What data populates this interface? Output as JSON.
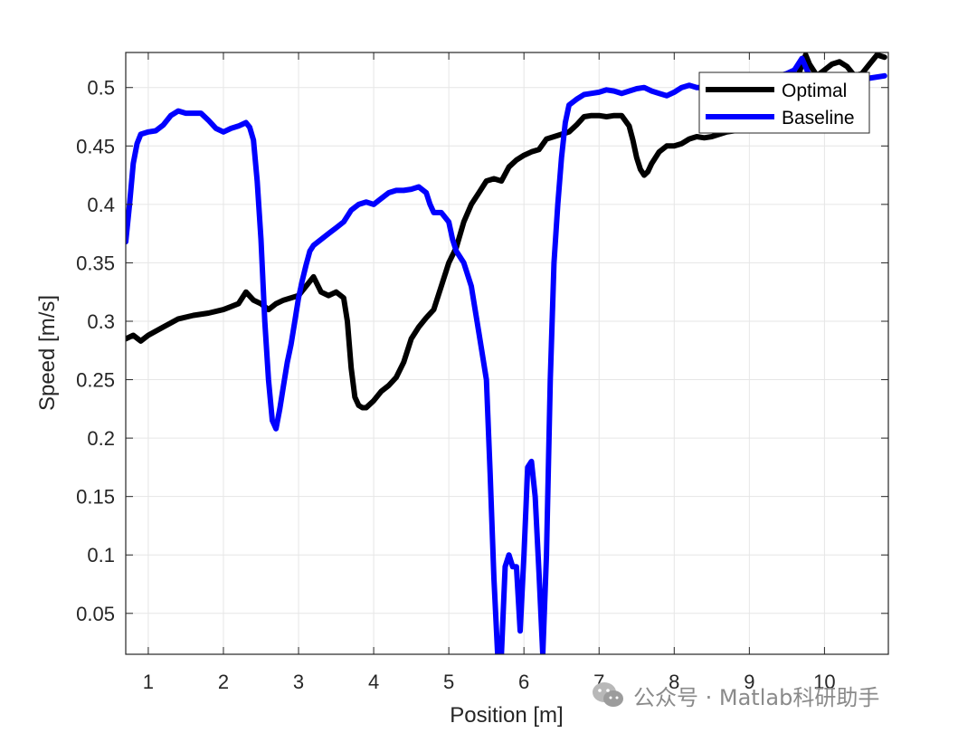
{
  "chart_data": {
    "type": "line",
    "xlabel": "Position [m]",
    "ylabel": "Speed [m/s]",
    "xlim": [
      0.7,
      10.85
    ],
    "ylim": [
      0.015,
      0.53
    ],
    "xticks": [
      1,
      2,
      3,
      4,
      5,
      6,
      7,
      8,
      9,
      10
    ],
    "yticks": [
      0.05,
      0.1,
      0.15,
      0.2,
      0.25,
      0.3,
      0.35,
      0.4,
      0.45,
      0.5
    ],
    "grid": true,
    "legend_position": "top-right",
    "series": [
      {
        "name": "Optimal",
        "color": "#000000",
        "x": [
          0.7,
          0.8,
          0.9,
          1.0,
          1.2,
          1.4,
          1.6,
          1.8,
          2.0,
          2.2,
          2.3,
          2.4,
          2.5,
          2.6,
          2.7,
          2.8,
          3.0,
          3.1,
          3.2,
          3.3,
          3.4,
          3.5,
          3.6,
          3.65,
          3.7,
          3.75,
          3.8,
          3.85,
          3.9,
          4.0,
          4.1,
          4.2,
          4.3,
          4.4,
          4.5,
          4.6,
          4.7,
          4.8,
          4.9,
          5.0,
          5.1,
          5.2,
          5.3,
          5.4,
          5.5,
          5.6,
          5.7,
          5.8,
          5.9,
          6.0,
          6.1,
          6.2,
          6.3,
          6.4,
          6.5,
          6.6,
          6.7,
          6.8,
          6.9,
          7.0,
          7.1,
          7.2,
          7.3,
          7.4,
          7.45,
          7.5,
          7.55,
          7.6,
          7.65,
          7.7,
          7.8,
          7.9,
          8.0,
          8.1,
          8.2,
          8.3,
          8.4,
          8.5,
          8.6,
          8.7,
          8.8,
          8.9,
          9.0,
          9.1,
          9.2,
          9.3,
          9.4,
          9.5,
          9.6,
          9.7,
          9.75,
          9.8,
          9.9,
          10.0,
          10.1,
          10.2,
          10.3,
          10.4,
          10.5,
          10.6,
          10.7,
          10.8
        ],
        "values": [
          0.285,
          0.288,
          0.283,
          0.288,
          0.295,
          0.302,
          0.305,
          0.307,
          0.31,
          0.315,
          0.325,
          0.318,
          0.315,
          0.31,
          0.315,
          0.318,
          0.322,
          0.33,
          0.338,
          0.325,
          0.322,
          0.325,
          0.32,
          0.3,
          0.26,
          0.235,
          0.228,
          0.226,
          0.226,
          0.232,
          0.24,
          0.245,
          0.252,
          0.265,
          0.285,
          0.295,
          0.303,
          0.31,
          0.33,
          0.35,
          0.363,
          0.385,
          0.4,
          0.41,
          0.42,
          0.422,
          0.42,
          0.432,
          0.438,
          0.442,
          0.445,
          0.447,
          0.456,
          0.458,
          0.46,
          0.462,
          0.468,
          0.475,
          0.476,
          0.476,
          0.475,
          0.476,
          0.476,
          0.467,
          0.455,
          0.44,
          0.43,
          0.425,
          0.428,
          0.435,
          0.445,
          0.45,
          0.45,
          0.452,
          0.456,
          0.458,
          0.457,
          0.458,
          0.46,
          0.462,
          0.463,
          0.465,
          0.466,
          0.467,
          0.467,
          0.47,
          0.478,
          0.49,
          0.5,
          0.52,
          0.528,
          0.52,
          0.51,
          0.515,
          0.52,
          0.522,
          0.518,
          0.51,
          0.512,
          0.52,
          0.528,
          0.526
        ]
      },
      {
        "name": "Baseline",
        "color": "#0000ff",
        "x": [
          0.7,
          0.75,
          0.8,
          0.85,
          0.9,
          1.0,
          1.1,
          1.2,
          1.3,
          1.4,
          1.5,
          1.6,
          1.7,
          1.8,
          1.9,
          2.0,
          2.1,
          2.2,
          2.3,
          2.35,
          2.4,
          2.45,
          2.5,
          2.55,
          2.6,
          2.65,
          2.7,
          2.75,
          2.8,
          2.85,
          2.9,
          2.95,
          3.0,
          3.05,
          3.1,
          3.15,
          3.2,
          3.3,
          3.4,
          3.5,
          3.6,
          3.7,
          3.8,
          3.9,
          4.0,
          4.1,
          4.2,
          4.3,
          4.4,
          4.5,
          4.6,
          4.7,
          4.75,
          4.8,
          4.9,
          5.0,
          5.05,
          5.1,
          5.2,
          5.3,
          5.4,
          5.5,
          5.55,
          5.6,
          5.65,
          5.7,
          5.75,
          5.8,
          5.85,
          5.9,
          5.95,
          6.0,
          6.05,
          6.1,
          6.15,
          6.2,
          6.25,
          6.3,
          6.35,
          6.4,
          6.45,
          6.5,
          6.55,
          6.6,
          6.7,
          6.8,
          6.9,
          7.0,
          7.1,
          7.2,
          7.3,
          7.4,
          7.5,
          7.6,
          7.7,
          7.8,
          7.9,
          8.0,
          8.1,
          8.2,
          8.3,
          8.4,
          8.5,
          8.6,
          8.7,
          8.8,
          8.9,
          9.0,
          9.1,
          9.2,
          9.3,
          9.4,
          9.5,
          9.6,
          9.7,
          9.8,
          9.9,
          10.0,
          10.2,
          10.4,
          10.6,
          10.8
        ],
        "values": [
          0.368,
          0.4,
          0.435,
          0.452,
          0.46,
          0.462,
          0.463,
          0.468,
          0.476,
          0.48,
          0.478,
          0.478,
          0.478,
          0.472,
          0.465,
          0.462,
          0.465,
          0.467,
          0.47,
          0.466,
          0.455,
          0.42,
          0.37,
          0.3,
          0.25,
          0.215,
          0.208,
          0.225,
          0.245,
          0.265,
          0.28,
          0.3,
          0.32,
          0.335,
          0.348,
          0.36,
          0.365,
          0.37,
          0.375,
          0.38,
          0.385,
          0.395,
          0.4,
          0.402,
          0.4,
          0.405,
          0.41,
          0.412,
          0.412,
          0.413,
          0.415,
          0.41,
          0.4,
          0.393,
          0.393,
          0.385,
          0.37,
          0.36,
          0.35,
          0.33,
          0.29,
          0.25,
          0.17,
          0.08,
          0.015,
          0.015,
          0.09,
          0.1,
          0.09,
          0.09,
          0.035,
          0.1,
          0.175,
          0.18,
          0.15,
          0.085,
          0.015,
          0.1,
          0.25,
          0.35,
          0.4,
          0.44,
          0.47,
          0.485,
          0.49,
          0.494,
          0.495,
          0.496,
          0.498,
          0.497,
          0.495,
          0.497,
          0.499,
          0.5,
          0.497,
          0.495,
          0.493,
          0.496,
          0.5,
          0.502,
          0.5,
          0.5,
          0.503,
          0.505,
          0.505,
          0.506,
          0.508,
          0.508,
          0.505,
          0.507,
          0.509,
          0.51,
          0.512,
          0.515,
          0.525,
          0.51,
          0.505,
          0.508,
          0.51,
          0.51,
          0.508,
          0.51
        ]
      }
    ]
  },
  "watermark": {
    "text": "公众号 · Matlab科研助手",
    "icon": "wechat-icon"
  }
}
